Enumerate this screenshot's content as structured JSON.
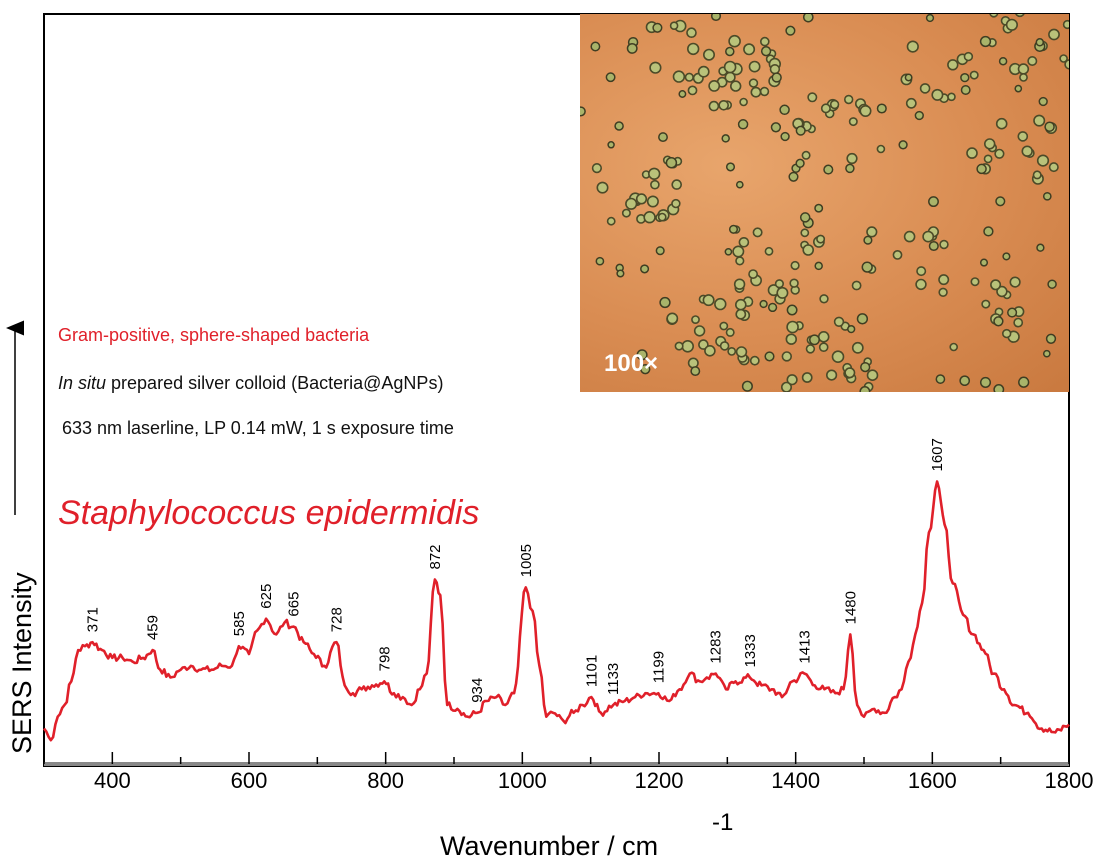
{
  "notes": {
    "gram": "Gram-positive, sphere-shaped bacteria",
    "colloid_italic": "In situ",
    "colloid_rest": " prepared silver colloid (Bacteria@AgNPs)",
    "laser": "633 nm laserline, LP 0.14 mW, 1 s exposure time"
  },
  "species": "Staphylococcus epidermidis",
  "inset": {
    "magnification": "100×",
    "icon": "microscopy-image"
  },
  "chart_data": {
    "type": "line",
    "xlabel": "Wavenumber / cm",
    "xlabel_superscript": "-1",
    "ylabel": "SERS Intensity",
    "xlim": [
      300,
      1800
    ],
    "ylim": [
      0,
      1
    ],
    "xticks": [
      400,
      600,
      800,
      1000,
      1200,
      1400,
      1600,
      1800
    ],
    "grid": false,
    "series": [
      {
        "color": "#e0202a",
        "x": [
          300,
          310,
          320,
          330,
          340,
          350,
          360,
          371,
          385,
          400,
          415,
          430,
          445,
          459,
          470,
          485,
          500,
          515,
          530,
          545,
          560,
          575,
          585,
          600,
          612,
          625,
          640,
          652,
          665,
          680,
          695,
          710,
          728,
          740,
          752,
          765,
          780,
          798,
          812,
          825,
          838,
          850,
          860,
          872,
          880,
          890,
          905,
          920,
          934,
          948,
          962,
          975,
          988,
          1005,
          1015,
          1025,
          1035,
          1045,
          1060,
          1075,
          1088,
          1101,
          1115,
          1133,
          1150,
          1165,
          1180,
          1199,
          1215,
          1230,
          1245,
          1260,
          1270,
          1283,
          1298,
          1312,
          1333,
          1350,
          1365,
          1380,
          1395,
          1413,
          1428,
          1442,
          1458,
          1470,
          1480,
          1490,
          1500,
          1515,
          1530,
          1545,
          1555,
          1565,
          1575,
          1585,
          1595,
          1607,
          1618,
          1630,
          1645,
          1660,
          1675,
          1690,
          1705,
          1720,
          1740,
          1760,
          1780,
          1800
        ],
        "y": [
          0.06,
          0.03,
          0.09,
          0.12,
          0.18,
          0.26,
          0.27,
          0.28,
          0.26,
          0.24,
          0.24,
          0.23,
          0.24,
          0.26,
          0.21,
          0.19,
          0.21,
          0.22,
          0.21,
          0.21,
          0.22,
          0.22,
          0.27,
          0.25,
          0.31,
          0.34,
          0.3,
          0.33,
          0.32,
          0.28,
          0.25,
          0.22,
          0.28,
          0.17,
          0.15,
          0.16,
          0.17,
          0.18,
          0.15,
          0.14,
          0.12,
          0.16,
          0.2,
          0.44,
          0.4,
          0.12,
          0.11,
          0.09,
          0.1,
          0.13,
          0.14,
          0.12,
          0.15,
          0.42,
          0.36,
          0.22,
          0.09,
          0.1,
          0.08,
          0.1,
          0.12,
          0.14,
          0.1,
          0.12,
          0.13,
          0.14,
          0.15,
          0.15,
          0.13,
          0.16,
          0.2,
          0.18,
          0.19,
          0.2,
          0.16,
          0.18,
          0.19,
          0.17,
          0.16,
          0.14,
          0.18,
          0.2,
          0.17,
          0.16,
          0.15,
          0.16,
          0.3,
          0.12,
          0.09,
          0.11,
          0.1,
          0.14,
          0.16,
          0.23,
          0.3,
          0.38,
          0.56,
          0.69,
          0.58,
          0.43,
          0.35,
          0.3,
          0.26,
          0.2,
          0.16,
          0.12,
          0.1,
          0.06,
          0.05,
          0.07
        ]
      }
    ],
    "peak_labels": [
      {
        "x": 371,
        "text": "371"
      },
      {
        "x": 459,
        "text": "459"
      },
      {
        "x": 585,
        "text": "585"
      },
      {
        "x": 625,
        "text": "625"
      },
      {
        "x": 665,
        "text": "665"
      },
      {
        "x": 728,
        "text": "728"
      },
      {
        "x": 798,
        "text": "798"
      },
      {
        "x": 872,
        "text": "872"
      },
      {
        "x": 934,
        "text": "934"
      },
      {
        "x": 1005,
        "text": "1005"
      },
      {
        "x": 1101,
        "text": "1101"
      },
      {
        "x": 1133,
        "text": "1133"
      },
      {
        "x": 1199,
        "text": "1199"
      },
      {
        "x": 1283,
        "text": "1283"
      },
      {
        "x": 1333,
        "text": "1333"
      },
      {
        "x": 1413,
        "text": "1413"
      },
      {
        "x": 1480,
        "text": "1480"
      },
      {
        "x": 1607,
        "text": "1607"
      }
    ]
  }
}
